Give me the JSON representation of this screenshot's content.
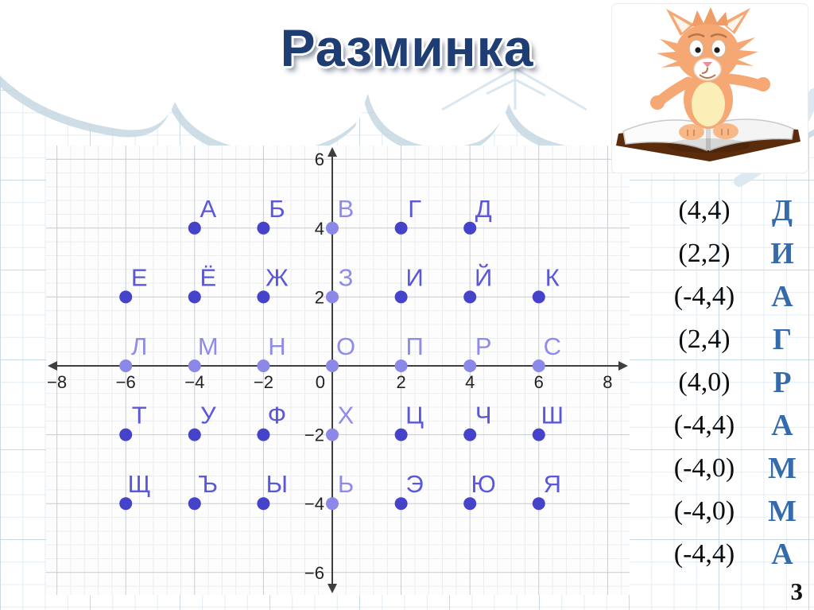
{
  "slide": {
    "title": "Разминка",
    "page_number": "3"
  },
  "chart_data": {
    "type": "scatter",
    "title": "",
    "xlabel": "",
    "ylabel": "",
    "xlim": [
      -8.3,
      8.6
    ],
    "ylim": [
      -6.65,
      6.4
    ],
    "x_ticks": [
      -8,
      -6,
      -4,
      -2,
      0,
      2,
      4,
      6,
      8
    ],
    "y_ticks": [
      6,
      4,
      2,
      -2,
      -4,
      -6
    ],
    "grid": {
      "major_step": 2,
      "minor_step": 0.4,
      "visible": true
    },
    "legend": "none",
    "colors": {
      "point": "#4543c9",
      "point_on_axis": "#8b88e8",
      "label": "#5a57d8",
      "label_on_axis": "#8f8ce9",
      "axis": "#3f3f3f",
      "major_grid": "#c7ccd1",
      "minor_grid": "#ebedee",
      "tick_text": "#222222"
    },
    "points": [
      {
        "label": "А",
        "x": -4,
        "y": 4
      },
      {
        "label": "Б",
        "x": -2,
        "y": 4
      },
      {
        "label": "В",
        "x": 0,
        "y": 4
      },
      {
        "label": "Г",
        "x": 2,
        "y": 4
      },
      {
        "label": "Д",
        "x": 4,
        "y": 4
      },
      {
        "label": "Е",
        "x": -6,
        "y": 2
      },
      {
        "label": "Ё",
        "x": -4,
        "y": 2
      },
      {
        "label": "Ж",
        "x": -2,
        "y": 2
      },
      {
        "label": "З",
        "x": 0,
        "y": 2
      },
      {
        "label": "И",
        "x": 2,
        "y": 2
      },
      {
        "label": "Й",
        "x": 4,
        "y": 2
      },
      {
        "label": "К",
        "x": 6,
        "y": 2
      },
      {
        "label": "Л",
        "x": -6,
        "y": 0
      },
      {
        "label": "М",
        "x": -4,
        "y": 0
      },
      {
        "label": "Н",
        "x": -2,
        "y": 0
      },
      {
        "label": "О",
        "x": 0,
        "y": 0
      },
      {
        "label": "П",
        "x": 2,
        "y": 0
      },
      {
        "label": "Р",
        "x": 4,
        "y": 0
      },
      {
        "label": "С",
        "x": 6,
        "y": 0
      },
      {
        "label": "Т",
        "x": -6,
        "y": -2
      },
      {
        "label": "У",
        "x": -4,
        "y": -2
      },
      {
        "label": "Ф",
        "x": -2,
        "y": -2
      },
      {
        "label": "Х",
        "x": 0,
        "y": -2
      },
      {
        "label": "Ц",
        "x": 2,
        "y": -2
      },
      {
        "label": "Ч",
        "x": 4,
        "y": -2
      },
      {
        "label": "Ш",
        "x": 6,
        "y": -2
      },
      {
        "label": "Щ",
        "x": -6,
        "y": -4
      },
      {
        "label": "Ъ",
        "x": -4,
        "y": -4
      },
      {
        "label": "Ы",
        "x": -2,
        "y": -4
      },
      {
        "label": "Ь",
        "x": 0,
        "y": -4
      },
      {
        "label": "Э",
        "x": 2,
        "y": -4
      },
      {
        "label": "Ю",
        "x": 4,
        "y": -4
      },
      {
        "label": "Я",
        "x": 6,
        "y": -4
      }
    ]
  },
  "answer_list": {
    "accent_color": "#356aab",
    "rows": [
      {
        "coord": "(4,4)",
        "letter": "Д"
      },
      {
        "coord": "(2,2)",
        "letter": "И"
      },
      {
        "coord": "(-4,4)",
        "letter": "А"
      },
      {
        "coord": "(2,4)",
        "letter": "Г"
      },
      {
        "coord": "(4,0)",
        "letter": "Р"
      },
      {
        "coord": "(-4,4)",
        "letter": "А"
      },
      {
        "coord": "(-4,0)",
        "letter": "М"
      },
      {
        "coord": "(-4,0)",
        "letter": "М"
      },
      {
        "coord": "(-4,4)",
        "letter": "А"
      }
    ]
  }
}
